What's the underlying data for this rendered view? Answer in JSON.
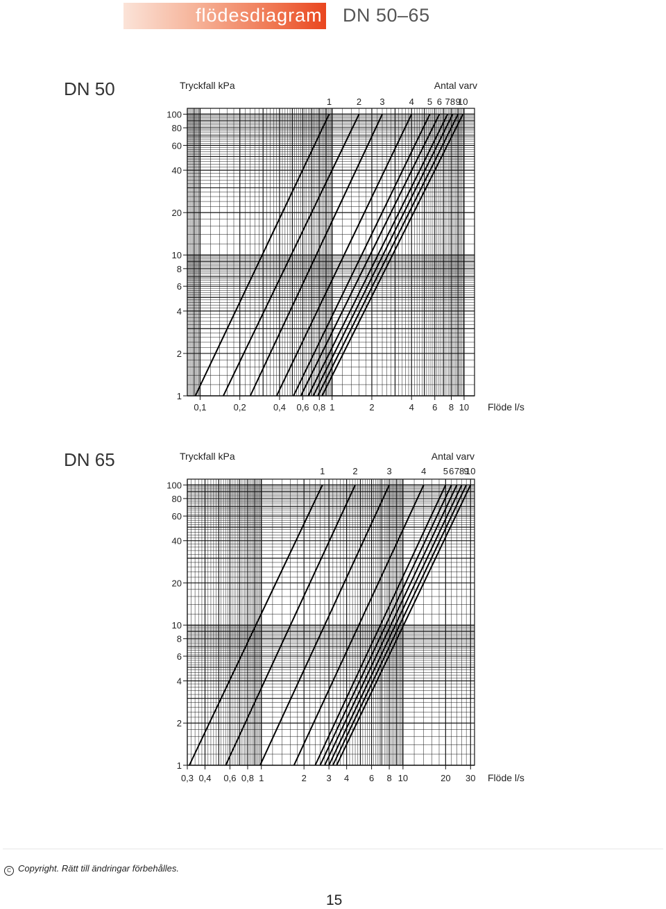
{
  "header": {
    "title": "flödesdiagram",
    "subtitle": "DN 50–65"
  },
  "footer": {
    "copyright": "Copyright. Rätt till ändringar förbehålles.",
    "page_number": "15"
  },
  "colors": {
    "accent": "#e9461f",
    "grid": "#111111"
  },
  "chart_data": [
    {
      "type": "line",
      "section_label": "DN 50",
      "ylabel": "Tryckfall kPa",
      "xlabel": "Flöde l/s",
      "legend_title": "Antal varv",
      "x_scale": "log",
      "y_scale": "log",
      "xlim": [
        0.08,
        12
      ],
      "ylim": [
        1,
        110
      ],
      "x_ticks": [
        0.1,
        0.2,
        0.4,
        0.6,
        0.8,
        1,
        2,
        4,
        6,
        8,
        10
      ],
      "x_tick_labels": [
        "0,1",
        "0,2",
        "0,4",
        "0,6",
        "0,8",
        "1",
        "2",
        "4",
        "6",
        "8",
        "10"
      ],
      "y_ticks": [
        1,
        2,
        4,
        6,
        8,
        10,
        20,
        40,
        60,
        80,
        100
      ],
      "y_tick_labels": [
        "1",
        "2",
        "4",
        "6",
        "8",
        "10",
        "20",
        "40",
        "60",
        "80",
        "100"
      ],
      "grid": true,
      "series": [
        {
          "name": "1",
          "x": [
            0.092,
            0.95
          ],
          "y": [
            1,
            100
          ]
        },
        {
          "name": "2",
          "x": [
            0.15,
            1.6
          ],
          "y": [
            1,
            100
          ]
        },
        {
          "name": "3",
          "x": [
            0.24,
            2.4
          ],
          "y": [
            1,
            100
          ]
        },
        {
          "name": "4",
          "x": [
            0.38,
            4
          ],
          "y": [
            1,
            100
          ]
        },
        {
          "name": "5",
          "x": [
            0.51,
            5.5
          ],
          "y": [
            1,
            100
          ]
        },
        {
          "name": "6",
          "x": [
            0.58,
            6.5
          ],
          "y": [
            1,
            100
          ]
        },
        {
          "name": "7",
          "x": [
            0.66,
            7.5
          ],
          "y": [
            1,
            100
          ]
        },
        {
          "name": "8",
          "x": [
            0.72,
            8.2
          ],
          "y": [
            1,
            100
          ]
        },
        {
          "name": "9",
          "x": [
            0.78,
            9
          ],
          "y": [
            1,
            100
          ]
        },
        {
          "name": "10",
          "x": [
            0.84,
            9.8
          ],
          "y": [
            1,
            100
          ]
        }
      ]
    },
    {
      "type": "line",
      "section_label": "DN 65",
      "ylabel": "Tryckfall kPa",
      "xlabel": "Flöde l/s",
      "legend_title": "Antal varv",
      "x_scale": "log",
      "y_scale": "log",
      "xlim": [
        0.3,
        32
      ],
      "ylim": [
        1,
        110
      ],
      "x_ticks": [
        0.3,
        0.4,
        0.6,
        0.8,
        1,
        2,
        3,
        4,
        6,
        8,
        10,
        20,
        30
      ],
      "x_tick_labels": [
        "0,3",
        "0,4",
        "0,6",
        "0,8",
        "1",
        "2",
        "3",
        "4",
        "6",
        "8",
        "10",
        "20",
        "30"
      ],
      "y_ticks": [
        1,
        2,
        4,
        6,
        8,
        10,
        20,
        40,
        60,
        80,
        100
      ],
      "y_tick_labels": [
        "1",
        "2",
        "4",
        "6",
        "8",
        "10",
        "20",
        "40",
        "60",
        "80",
        "100"
      ],
      "grid": true,
      "series": [
        {
          "name": "1",
          "x": [
            0.31,
            2.7
          ],
          "y": [
            1,
            100
          ]
        },
        {
          "name": "2",
          "x": [
            0.56,
            4.6
          ],
          "y": [
            1,
            100
          ]
        },
        {
          "name": "3",
          "x": [
            0.98,
            8
          ],
          "y": [
            1,
            100
          ]
        },
        {
          "name": "4",
          "x": [
            1.7,
            14
          ],
          "y": [
            1,
            100
          ]
        },
        {
          "name": "5",
          "x": [
            2.4,
            20
          ],
          "y": [
            1,
            100
          ]
        },
        {
          "name": "6",
          "x": [
            2.6,
            22
          ],
          "y": [
            1,
            100
          ]
        },
        {
          "name": "7",
          "x": [
            2.8,
            24
          ],
          "y": [
            1,
            100
          ]
        },
        {
          "name": "8",
          "x": [
            3.0,
            26
          ],
          "y": [
            1,
            100
          ]
        },
        {
          "name": "9",
          "x": [
            3.2,
            28
          ],
          "y": [
            1,
            100
          ]
        },
        {
          "name": "10",
          "x": [
            3.4,
            30
          ],
          "y": [
            1,
            100
          ]
        }
      ]
    }
  ]
}
